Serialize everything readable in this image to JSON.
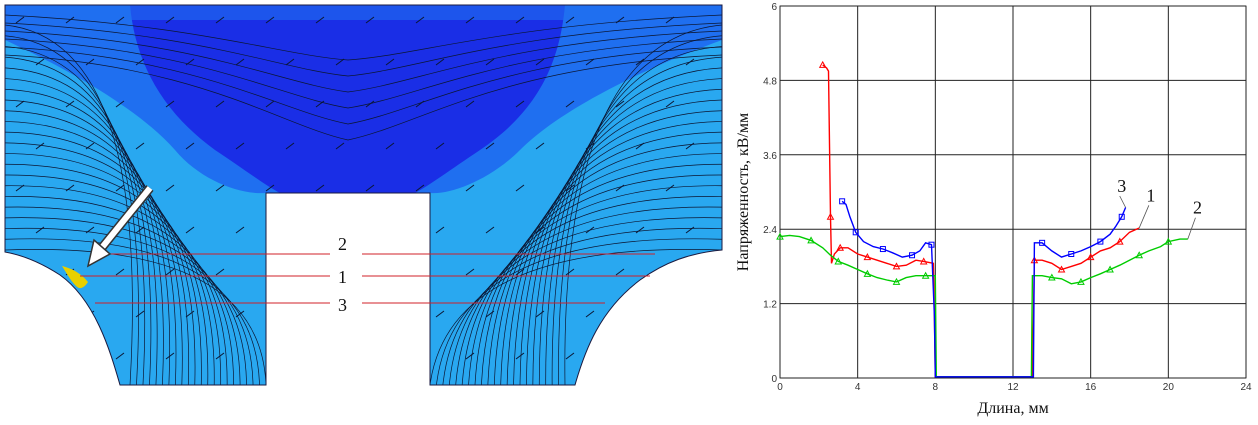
{
  "colors": {
    "field_dark": "#1a2ee6",
    "field_mid": "#1f6ff0",
    "field_light": "#29a8f0",
    "field_hot": "#e8d000",
    "arrow": "#ffffff",
    "cut_line": "#d0202a",
    "series1": "#ff0000",
    "series2": "#00cc00",
    "series3": "#0000ff"
  },
  "figure_left": {
    "line_labels": [
      "2",
      "1",
      "3"
    ]
  },
  "chart_data": {
    "type": "line",
    "title": "",
    "xlabel": "Длина, мм",
    "ylabel": "Напряженность, кВ/мм",
    "xlim": [
      0,
      24
    ],
    "ylim": [
      0,
      6
    ],
    "xticks": [
      "0",
      "4",
      "8",
      "12",
      "16",
      "20",
      "24"
    ],
    "xticks_values": [
      0,
      4,
      8,
      12,
      16,
      20,
      24
    ],
    "yticks": [
      "0",
      "1.2",
      "2.4",
      "3.6",
      "4.8",
      "6"
    ],
    "yticks_values": [
      0,
      1.2,
      2.4,
      3.6,
      4.8,
      6
    ],
    "grid": true,
    "series_labels": [
      "3",
      "1",
      "2"
    ],
    "series": [
      {
        "name": "1",
        "color": "#ff0000",
        "points": [
          [
            2.2,
            5.05
          ],
          [
            2.4,
            5.0
          ],
          [
            2.5,
            4.95
          ],
          [
            2.6,
            2.6
          ],
          [
            2.65,
            1.85
          ],
          [
            2.8,
            2.0
          ],
          [
            3.1,
            2.1
          ],
          [
            3.5,
            2.1
          ],
          [
            4.0,
            2.0
          ],
          [
            4.5,
            1.95
          ],
          [
            5.0,
            1.9
          ],
          [
            5.5,
            1.85
          ],
          [
            6.0,
            1.8
          ],
          [
            6.5,
            1.82
          ],
          [
            7.0,
            1.9
          ],
          [
            7.4,
            1.88
          ],
          [
            7.9,
            1.85
          ],
          [
            7.95,
            1.0
          ],
          [
            8.0,
            0.02
          ],
          [
            12.9,
            0.02
          ],
          [
            13.0,
            0.02
          ],
          [
            13.1,
            1.9
          ],
          [
            13.5,
            1.9
          ],
          [
            14.0,
            1.85
          ],
          [
            14.5,
            1.75
          ],
          [
            15.0,
            1.8
          ],
          [
            15.5,
            1.85
          ],
          [
            16.0,
            1.95
          ],
          [
            16.5,
            2.05
          ],
          [
            17.0,
            2.1
          ],
          [
            17.5,
            2.2
          ],
          [
            18.0,
            2.35
          ],
          [
            18.5,
            2.42
          ]
        ]
      },
      {
        "name": "2",
        "color": "#00cc00",
        "points": [
          [
            0.0,
            2.28
          ],
          [
            0.5,
            2.3
          ],
          [
            1.0,
            2.28
          ],
          [
            1.6,
            2.22
          ],
          [
            2.2,
            2.1
          ],
          [
            2.6,
            1.98
          ],
          [
            3.0,
            1.88
          ],
          [
            3.5,
            1.82
          ],
          [
            4.0,
            1.75
          ],
          [
            4.5,
            1.68
          ],
          [
            5.0,
            1.62
          ],
          [
            5.5,
            1.58
          ],
          [
            6.0,
            1.55
          ],
          [
            6.5,
            1.62
          ],
          [
            7.0,
            1.65
          ],
          [
            7.5,
            1.65
          ],
          [
            8.0,
            1.65
          ],
          [
            8.05,
            0.02
          ],
          [
            12.95,
            0.02
          ],
          [
            13.0,
            1.65
          ],
          [
            13.5,
            1.65
          ],
          [
            14.0,
            1.62
          ],
          [
            14.5,
            1.6
          ],
          [
            15.0,
            1.52
          ],
          [
            15.5,
            1.55
          ],
          [
            16.0,
            1.62
          ],
          [
            16.5,
            1.68
          ],
          [
            17.0,
            1.75
          ],
          [
            17.5,
            1.82
          ],
          [
            18.0,
            1.9
          ],
          [
            18.5,
            1.98
          ],
          [
            19.0,
            2.05
          ],
          [
            19.6,
            2.12
          ],
          [
            20.0,
            2.2
          ],
          [
            20.6,
            2.24
          ],
          [
            21.0,
            2.24
          ]
        ]
      },
      {
        "name": "3",
        "color": "#0000ff",
        "points": [
          [
            3.2,
            2.85
          ],
          [
            3.4,
            2.8
          ],
          [
            3.6,
            2.6
          ],
          [
            3.9,
            2.35
          ],
          [
            4.3,
            2.2
          ],
          [
            4.8,
            2.12
          ],
          [
            5.3,
            2.08
          ],
          [
            5.8,
            2.02
          ],
          [
            6.3,
            1.95
          ],
          [
            6.8,
            1.98
          ],
          [
            7.2,
            2.05
          ],
          [
            7.5,
            2.18
          ],
          [
            7.8,
            2.15
          ],
          [
            7.95,
            1.0
          ],
          [
            8.0,
            0.02
          ],
          [
            12.9,
            0.02
          ],
          [
            13.05,
            0.02
          ],
          [
            13.1,
            2.18
          ],
          [
            13.5,
            2.18
          ],
          [
            14.0,
            2.05
          ],
          [
            14.5,
            1.95
          ],
          [
            15.0,
            2.0
          ],
          [
            15.5,
            2.05
          ],
          [
            16.0,
            2.12
          ],
          [
            16.5,
            2.2
          ],
          [
            17.0,
            2.32
          ],
          [
            17.3,
            2.45
          ],
          [
            17.6,
            2.6
          ],
          [
            17.8,
            2.75
          ]
        ]
      }
    ]
  }
}
